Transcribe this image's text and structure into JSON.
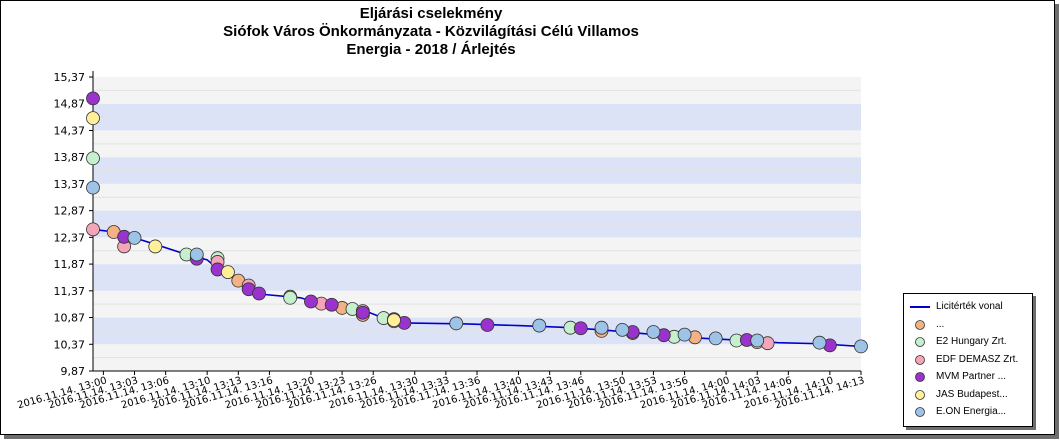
{
  "title_lines": [
    "Eljárási cselekmény",
    "Siófok Város Önkormányzata - Közvilágítási Célú Villamos",
    "Energia - 2018 / Árlejtés"
  ],
  "chart_data": {
    "type": "line",
    "title": "Eljárási cselekmény Siófok Város Önkormányzata - Közvilágítási Célú Villamos Energia - 2018 / Árlejtés",
    "xlabel": "",
    "ylabel": "",
    "x_ticks": [
      "2016.11.14. 13:00",
      "2016.11.14. 13:03",
      "2016.11.14. 13:06",
      "2016.11.14. 13:10",
      "2016.11.14. 13:13",
      "2016.11.14. 13:16",
      "2016.11.14. 13:20",
      "2016.11.14. 13:23",
      "2016.11.14. 13:26",
      "2016.11.14. 13:30",
      "2016.11.14. 13:33",
      "2016.11.14. 13:36",
      "2016.11.14. 13:40",
      "2016.11.14. 13:43",
      "2016.11.14. 13:46",
      "2016.11.14. 13:50",
      "2016.11.14. 13:53",
      "2016.11.14. 13:56",
      "2016.11.14. 14:00",
      "2016.11.14. 14:03",
      "2016.11.14. 14:06",
      "2016.11.14. 14:10",
      "2016.11.14. 14:13"
    ],
    "y_ticks": [
      "9,87",
      "10,37",
      "10,87",
      "11,37",
      "11,87",
      "12,37",
      "12,87",
      "13,37",
      "13,87",
      "14,37",
      "14,87",
      "15,37"
    ],
    "ylim": [
      9.87,
      15.37
    ],
    "grid": true,
    "legend_position": "bottom-right",
    "colors": {
      "line": "#0000cc",
      "unknown": "#f4b183",
      "e2": "#c6efce",
      "edf": "#f4a6b8",
      "mvm": "#9933cc",
      "jas": "#ffef99",
      "eon": "#9dc3e6",
      "band": "#dde3f7",
      "band_light": "#f4f4f4"
    },
    "series": [
      {
        "name": "Licitérték vonal",
        "key": "line",
        "points": [
          [
            "2016.11.14. 12:59",
            12.52
          ],
          [
            "2016.11.14. 13:01",
            12.47
          ],
          [
            "2016.11.14. 13:02",
            12.41
          ],
          [
            "2016.11.14. 13:03",
            12.36
          ],
          [
            "2016.11.14. 13:05",
            12.24
          ],
          [
            "2016.11.14. 13:08",
            12.05
          ],
          [
            "2016.11.14. 13:10",
            11.95
          ],
          [
            "2016.11.14. 13:11",
            11.78
          ],
          [
            "2016.11.14. 13:12",
            11.71
          ],
          [
            "2016.11.14. 13:13",
            11.52
          ],
          [
            "2016.11.14. 13:15",
            11.31
          ],
          [
            "2016.11.14. 13:19",
            11.24
          ],
          [
            "2016.11.14. 13:21",
            11.12
          ],
          [
            "2016.11.14. 13:25",
            11.01
          ],
          [
            "2016.11.14. 13:27",
            10.86
          ],
          [
            "2016.11.14. 13:29",
            10.77
          ],
          [
            "2016.11.14. 13:35",
            10.75
          ],
          [
            "2016.11.14. 13:40",
            10.72
          ],
          [
            "2016.11.14. 13:44",
            10.69
          ],
          [
            "2016.11.14. 13:48",
            10.64
          ],
          [
            "2016.11.14. 13:52",
            10.57
          ],
          [
            "2016.11.14. 13:55",
            10.52
          ],
          [
            "2016.11.14. 13:58",
            10.48
          ],
          [
            "2016.11.14. 14:02",
            10.44
          ],
          [
            "2016.11.14. 14:05",
            10.4
          ],
          [
            "2016.11.14. 14:09",
            10.38
          ],
          [
            "2016.11.14. 14:13",
            10.33
          ]
        ]
      },
      {
        "name": "...",
        "key": "unknown",
        "points": [
          [
            "2016.11.14. 13:01",
            12.47
          ],
          [
            "2016.11.14. 13:13",
            11.56
          ],
          [
            "2016.11.14. 13:18",
            11.26
          ],
          [
            "2016.11.14. 13:23",
            11.05
          ],
          [
            "2016.11.14. 13:25",
            10.92
          ],
          [
            "2016.11.14. 13:48",
            10.62
          ],
          [
            "2016.11.14. 13:57",
            10.5
          ],
          [
            "2016.11.14. 14:03",
            10.41
          ]
        ]
      },
      {
        "name": "E2 Hungary Zrt.",
        "key": "e2",
        "points": [
          [
            "2016.11.14. 12:59",
            13.85
          ],
          [
            "2016.11.14. 13:08",
            12.05
          ],
          [
            "2016.11.14. 13:11",
            11.98
          ],
          [
            "2016.11.14. 13:18",
            11.24
          ],
          [
            "2016.11.14. 13:24",
            11.03
          ],
          [
            "2016.11.14. 13:27",
            10.86
          ],
          [
            "2016.11.14. 13:45",
            10.68
          ],
          [
            "2016.11.14. 13:55",
            10.51
          ],
          [
            "2016.11.14. 14:01",
            10.44
          ]
        ]
      },
      {
        "name": "EDF DEMASZ Zrt.",
        "key": "edf",
        "points": [
          [
            "2016.11.14. 12:59",
            12.52
          ],
          [
            "2016.11.14. 13:02",
            12.2
          ],
          [
            "2016.11.14. 13:11",
            11.91
          ],
          [
            "2016.11.14. 13:14",
            11.47
          ],
          [
            "2016.11.14. 13:21",
            11.13
          ],
          [
            "2016.11.14. 13:25",
            10.99
          ],
          [
            "2016.11.14. 13:28",
            10.8
          ],
          [
            "2016.11.14. 13:51",
            10.58
          ],
          [
            "2016.11.14. 14:04",
            10.39
          ]
        ]
      },
      {
        "name": "MVM Partner ...",
        "key": "mvm",
        "points": [
          [
            "2016.11.14. 12:59",
            14.97
          ],
          [
            "2016.11.14. 13:02",
            12.38
          ],
          [
            "2016.11.14. 13:09",
            11.97
          ],
          [
            "2016.11.14. 13:11",
            11.77
          ],
          [
            "2016.11.14. 13:14",
            11.4
          ],
          [
            "2016.11.14. 13:15",
            11.32
          ],
          [
            "2016.11.14. 13:20",
            11.17
          ],
          [
            "2016.11.14. 13:22",
            11.11
          ],
          [
            "2016.11.14. 13:25",
            10.96
          ],
          [
            "2016.11.14. 13:28",
            10.84
          ],
          [
            "2016.11.14. 13:29",
            10.77
          ],
          [
            "2016.11.14. 13:37",
            10.73
          ],
          [
            "2016.11.14. 13:46",
            10.67
          ],
          [
            "2016.11.14. 13:51",
            10.6
          ],
          [
            "2016.11.14. 13:54",
            10.54
          ],
          [
            "2016.11.14. 14:02",
            10.45
          ],
          [
            "2016.11.14. 14:10",
            10.35
          ]
        ]
      },
      {
        "name": "JAS Budapest...",
        "key": "jas",
        "points": [
          [
            "2016.11.14. 12:59",
            14.6
          ],
          [
            "2016.11.14. 13:05",
            12.2
          ],
          [
            "2016.11.14. 13:12",
            11.72
          ],
          [
            "2016.11.14. 13:28",
            10.82
          ]
        ]
      },
      {
        "name": "E.ON Energia...",
        "key": "eon",
        "points": [
          [
            "2016.11.14. 12:59",
            13.3
          ],
          [
            "2016.11.14. 13:03",
            12.36
          ],
          [
            "2016.11.14. 13:09",
            12.05
          ],
          [
            "2016.11.14. 13:34",
            10.76
          ],
          [
            "2016.11.14. 13:42",
            10.72
          ],
          [
            "2016.11.14. 13:48",
            10.68
          ],
          [
            "2016.11.14. 13:50",
            10.64
          ],
          [
            "2016.11.14. 13:53",
            10.6
          ],
          [
            "2016.11.14. 13:56",
            10.55
          ],
          [
            "2016.11.14. 13:59",
            10.48
          ],
          [
            "2016.11.14. 14:03",
            10.44
          ],
          [
            "2016.11.14. 14:09",
            10.4
          ],
          [
            "2016.11.14. 14:13",
            10.33
          ]
        ]
      }
    ]
  }
}
